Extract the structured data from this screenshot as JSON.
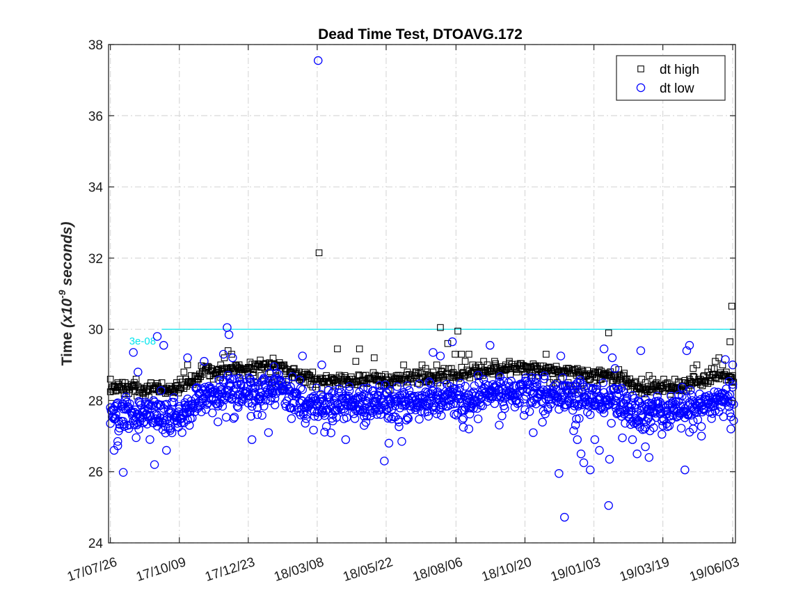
{
  "chart_data": {
    "type": "scatter",
    "title": "Dead Time Test, DTOAVG.172",
    "ylabel": "Time",
    "ylabel_unit": "(x10",
    "ylabel_exp": "-9",
    "ylabel_suffix": " seconds)",
    "xlabel": "",
    "x_is_date": true,
    "xlim": [
      "2017-07-24",
      "2019-06-06"
    ],
    "ylim": [
      24,
      38
    ],
    "yticks": [
      24,
      26,
      28,
      30,
      32,
      34,
      36,
      38
    ],
    "xticks": [
      {
        "date": "2017-07-26",
        "label": "17/07/26"
      },
      {
        "date": "2017-10-09",
        "label": "17/10/09"
      },
      {
        "date": "2017-12-23",
        "label": "17/12/23"
      },
      {
        "date": "2018-03-08",
        "label": "18/03/08"
      },
      {
        "date": "2018-05-22",
        "label": "18/05/22"
      },
      {
        "date": "2018-08-06",
        "label": "18/08/06"
      },
      {
        "date": "2018-10-20",
        "label": "18/10/20"
      },
      {
        "date": "2019-01-03",
        "label": "19/01/03"
      },
      {
        "date": "2019-03-19",
        "label": "19/03/19"
      },
      {
        "date": "2019-06-03",
        "label": "19/06/03"
      }
    ],
    "grid": true,
    "legend_position": "top-right",
    "reference_line": {
      "value": 30,
      "label": "3e-08",
      "color": "#00e5ee"
    },
    "series": [
      {
        "name": "dt high",
        "marker": "square",
        "color": "#000000",
        "points": [
          [
            "2017-07-26",
            28.6
          ],
          [
            "2017-07-30",
            28.4
          ],
          [
            "2017-08-03",
            28.5
          ],
          [
            "2017-08-07",
            28.3
          ],
          [
            "2017-08-11",
            28.5
          ],
          [
            "2017-08-15",
            28.2
          ],
          [
            "2017-08-19",
            28.4
          ],
          [
            "2017-08-23",
            28.6
          ],
          [
            "2017-08-27",
            28.3
          ],
          [
            "2017-08-31",
            28.2
          ],
          [
            "2017-09-04",
            28.4
          ],
          [
            "2017-09-08",
            28.5
          ],
          [
            "2017-09-12",
            28.3
          ],
          [
            "2017-09-16",
            28.4
          ],
          [
            "2017-09-20",
            28.5
          ],
          [
            "2017-09-24",
            28.2
          ],
          [
            "2017-09-28",
            28.4
          ],
          [
            "2017-10-02",
            28.3
          ],
          [
            "2017-10-06",
            28.5
          ],
          [
            "2017-10-10",
            28.6
          ],
          [
            "2017-10-14",
            28.8
          ],
          [
            "2017-10-18",
            29.0
          ],
          [
            "2017-10-22",
            28.7
          ],
          [
            "2017-10-26",
            28.5
          ],
          [
            "2017-10-30",
            28.6
          ],
          [
            "2017-11-03",
            28.8
          ],
          [
            "2017-11-07",
            28.9
          ],
          [
            "2017-11-11",
            28.7
          ],
          [
            "2017-11-15",
            28.6
          ],
          [
            "2017-11-19",
            28.8
          ],
          [
            "2017-11-23",
            29.0
          ],
          [
            "2017-11-27",
            29.2
          ],
          [
            "2017-12-01",
            29.4
          ],
          [
            "2017-12-05",
            29.3
          ],
          [
            "2017-12-09",
            29.0
          ],
          [
            "2017-12-13",
            28.8
          ],
          [
            "2017-12-17",
            28.7
          ],
          [
            "2017-12-21",
            28.9
          ],
          [
            "2017-12-25",
            28.6
          ],
          [
            "2017-12-29",
            28.7
          ],
          [
            "2018-01-02",
            28.5
          ],
          [
            "2018-01-06",
            28.7
          ],
          [
            "2018-01-10",
            28.9
          ],
          [
            "2018-01-14",
            28.6
          ],
          [
            "2018-01-18",
            28.5
          ],
          [
            "2018-01-22",
            28.7
          ],
          [
            "2018-01-26",
            28.6
          ],
          [
            "2018-01-30",
            28.4
          ],
          [
            "2018-02-03",
            28.6
          ],
          [
            "2018-02-07",
            28.8
          ],
          [
            "2018-02-11",
            28.9
          ],
          [
            "2018-02-15",
            28.7
          ],
          [
            "2018-02-19",
            28.6
          ],
          [
            "2018-02-23",
            28.5
          ],
          [
            "2018-02-27",
            28.7
          ],
          [
            "2018-03-03",
            28.8
          ],
          [
            "2018-03-07",
            28.6
          ],
          [
            "2018-03-10",
            32.15
          ],
          [
            "2018-03-14",
            28.6
          ],
          [
            "2018-03-18",
            28.7
          ],
          [
            "2018-03-22",
            28.5
          ],
          [
            "2018-03-26",
            28.6
          ],
          [
            "2018-03-30",
            29.45
          ],
          [
            "2018-04-03",
            28.6
          ],
          [
            "2018-04-07",
            28.7
          ],
          [
            "2018-04-11",
            28.5
          ],
          [
            "2018-04-15",
            28.6
          ],
          [
            "2018-04-19",
            29.1
          ],
          [
            "2018-04-23",
            29.45
          ],
          [
            "2018-04-27",
            28.7
          ],
          [
            "2018-05-01",
            28.5
          ],
          [
            "2018-05-05",
            28.6
          ],
          [
            "2018-05-09",
            29.2
          ],
          [
            "2018-05-13",
            28.6
          ],
          [
            "2018-05-17",
            28.4
          ],
          [
            "2018-05-21",
            28.5
          ],
          [
            "2018-05-25",
            28.3
          ],
          [
            "2018-05-29",
            28.5
          ],
          [
            "2018-06-02",
            28.6
          ],
          [
            "2018-06-06",
            28.7
          ],
          [
            "2018-06-10",
            29.0
          ],
          [
            "2018-06-14",
            28.8
          ],
          [
            "2018-06-18",
            28.6
          ],
          [
            "2018-06-22",
            28.7
          ],
          [
            "2018-06-26",
            28.8
          ],
          [
            "2018-06-30",
            29.0
          ],
          [
            "2018-07-04",
            28.9
          ],
          [
            "2018-07-08",
            28.7
          ],
          [
            "2018-07-12",
            28.8
          ],
          [
            "2018-07-16",
            29.0
          ],
          [
            "2018-07-20",
            30.05
          ],
          [
            "2018-07-24",
            28.9
          ],
          [
            "2018-07-28",
            29.6
          ],
          [
            "2018-08-01",
            28.9
          ],
          [
            "2018-08-05",
            29.3
          ],
          [
            "2018-08-08",
            29.95
          ],
          [
            "2018-08-12",
            29.3
          ],
          [
            "2018-08-16",
            29.1
          ],
          [
            "2018-08-20",
            29.3
          ],
          [
            "2018-08-24",
            29.0
          ],
          [
            "2018-08-28",
            28.9
          ],
          [
            "2018-09-01",
            28.8
          ],
          [
            "2018-09-05",
            29.1
          ],
          [
            "2018-09-09",
            28.8
          ],
          [
            "2018-09-13",
            28.9
          ],
          [
            "2018-09-17",
            29.1
          ],
          [
            "2018-09-21",
            28.8
          ],
          [
            "2018-09-25",
            28.9
          ],
          [
            "2018-09-29",
            29.0
          ],
          [
            "2018-10-03",
            29.1
          ],
          [
            "2018-10-07",
            28.9
          ],
          [
            "2018-10-11",
            28.8
          ],
          [
            "2018-10-15",
            28.9
          ],
          [
            "2018-10-19",
            28.8
          ],
          [
            "2018-10-23",
            28.9
          ],
          [
            "2018-10-27",
            28.7
          ],
          [
            "2018-10-31",
            28.8
          ],
          [
            "2018-11-04",
            28.7
          ],
          [
            "2018-11-08",
            28.8
          ],
          [
            "2018-11-12",
            29.3
          ],
          [
            "2018-11-16",
            28.5
          ],
          [
            "2018-11-20",
            28.6
          ],
          [
            "2018-11-24",
            28.5
          ],
          [
            "2018-11-28",
            28.6
          ],
          [
            "2018-12-02",
            28.4
          ],
          [
            "2018-12-06",
            28.5
          ],
          [
            "2018-12-10",
            28.3
          ],
          [
            "2018-12-14",
            28.4
          ],
          [
            "2018-12-18",
            28.3
          ],
          [
            "2018-12-22",
            28.5
          ],
          [
            "2018-12-26",
            28.4
          ],
          [
            "2018-12-30",
            28.6
          ],
          [
            "2019-01-03",
            28.5
          ],
          [
            "2019-01-07",
            28.4
          ],
          [
            "2019-01-11",
            28.6
          ],
          [
            "2019-01-15",
            28.7
          ],
          [
            "2019-01-19",
            29.9
          ],
          [
            "2019-01-23",
            28.5
          ],
          [
            "2019-01-27",
            28.4
          ],
          [
            "2019-01-31",
            28.6
          ],
          [
            "2019-02-04",
            28.5
          ],
          [
            "2019-02-08",
            28.4
          ],
          [
            "2019-02-12",
            28.3
          ],
          [
            "2019-02-16",
            28.5
          ],
          [
            "2019-02-20",
            28.4
          ],
          [
            "2019-02-24",
            28.6
          ],
          [
            "2019-02-28",
            28.5
          ],
          [
            "2019-03-04",
            28.7
          ],
          [
            "2019-03-08",
            28.6
          ],
          [
            "2019-03-12",
            28.5
          ],
          [
            "2019-03-16",
            28.4
          ],
          [
            "2019-03-20",
            28.6
          ],
          [
            "2019-03-24",
            28.5
          ],
          [
            "2019-03-28",
            28.4
          ],
          [
            "2019-04-01",
            28.6
          ],
          [
            "2019-04-05",
            28.5
          ],
          [
            "2019-04-09",
            28.4
          ],
          [
            "2019-04-13",
            28.5
          ],
          [
            "2019-04-17",
            28.6
          ],
          [
            "2019-04-21",
            28.9
          ],
          [
            "2019-04-25",
            29.0
          ],
          [
            "2019-04-29",
            28.6
          ],
          [
            "2019-05-03",
            28.7
          ],
          [
            "2019-05-07",
            28.8
          ],
          [
            "2019-05-11",
            28.9
          ],
          [
            "2019-05-15",
            29.1
          ],
          [
            "2019-05-19",
            29.2
          ],
          [
            "2019-05-23",
            29.0
          ],
          [
            "2019-05-27",
            28.8
          ],
          [
            "2019-05-31",
            29.65
          ],
          [
            "2019-06-01",
            28.6
          ],
          [
            "2019-06-02",
            30.65
          ],
          [
            "2019-06-03",
            28.7
          ]
        ]
      },
      {
        "name": "dt low",
        "marker": "circle",
        "color": "#0000ff",
        "points": [
          [
            "2017-07-30",
            26.6
          ],
          [
            "2017-08-03",
            26.85
          ],
          [
            "2017-08-09",
            25.98
          ],
          [
            "2017-08-20",
            29.35
          ],
          [
            "2017-08-25",
            28.8
          ],
          [
            "2017-09-12",
            26.2
          ],
          [
            "2017-09-15",
            29.8
          ],
          [
            "2017-09-22",
            29.55
          ],
          [
            "2017-09-25",
            26.6
          ],
          [
            "2017-10-12",
            27.1
          ],
          [
            "2017-10-18",
            29.2
          ],
          [
            "2017-11-05",
            29.1
          ],
          [
            "2017-11-20",
            27.4
          ],
          [
            "2017-11-26",
            29.3
          ],
          [
            "2017-11-30",
            30.05
          ],
          [
            "2017-12-02",
            29.85
          ],
          [
            "2017-12-06",
            29.2
          ],
          [
            "2017-12-27",
            26.9
          ],
          [
            "2018-01-14",
            27.1
          ],
          [
            "2018-01-20",
            28.95
          ],
          [
            "2018-02-20",
            29.25
          ],
          [
            "2018-03-09",
            37.55
          ],
          [
            "2018-03-13",
            29.0
          ],
          [
            "2018-04-08",
            26.9
          ],
          [
            "2018-04-28",
            27.3
          ],
          [
            "2018-05-20",
            26.3
          ],
          [
            "2018-05-25",
            26.8
          ],
          [
            "2018-06-08",
            26.85
          ],
          [
            "2018-06-15",
            27.5
          ],
          [
            "2018-07-12",
            29.35
          ],
          [
            "2018-07-20",
            29.25
          ],
          [
            "2018-08-02",
            29.65
          ],
          [
            "2018-08-20",
            27.2
          ],
          [
            "2018-09-12",
            29.55
          ],
          [
            "2018-11-26",
            25.95
          ],
          [
            "2018-11-28",
            29.25
          ],
          [
            "2018-12-02",
            24.72
          ],
          [
            "2018-12-12",
            27.15
          ],
          [
            "2018-12-16",
            26.9
          ],
          [
            "2018-12-20",
            26.5
          ],
          [
            "2018-12-23",
            26.25
          ],
          [
            "2018-12-30",
            26.05
          ],
          [
            "2019-01-04",
            26.9
          ],
          [
            "2019-01-09",
            26.6
          ],
          [
            "2019-01-14",
            29.45
          ],
          [
            "2019-01-19",
            25.05
          ],
          [
            "2019-01-20",
            26.35
          ],
          [
            "2019-01-23",
            29.2
          ],
          [
            "2019-01-26",
            28.9
          ],
          [
            "2019-02-03",
            26.95
          ],
          [
            "2019-02-14",
            26.9
          ],
          [
            "2019-02-19",
            26.5
          ],
          [
            "2019-02-23",
            29.4
          ],
          [
            "2019-02-28",
            26.7
          ],
          [
            "2019-03-04",
            26.4
          ],
          [
            "2019-04-12",
            26.05
          ],
          [
            "2019-04-14",
            29.4
          ],
          [
            "2019-04-17",
            29.55
          ],
          [
            "2019-04-30",
            27.0
          ],
          [
            "2019-05-26",
            29.15
          ],
          [
            "2019-06-01",
            27.2
          ],
          [
            "2019-06-03",
            29.0
          ]
        ]
      }
    ]
  }
}
